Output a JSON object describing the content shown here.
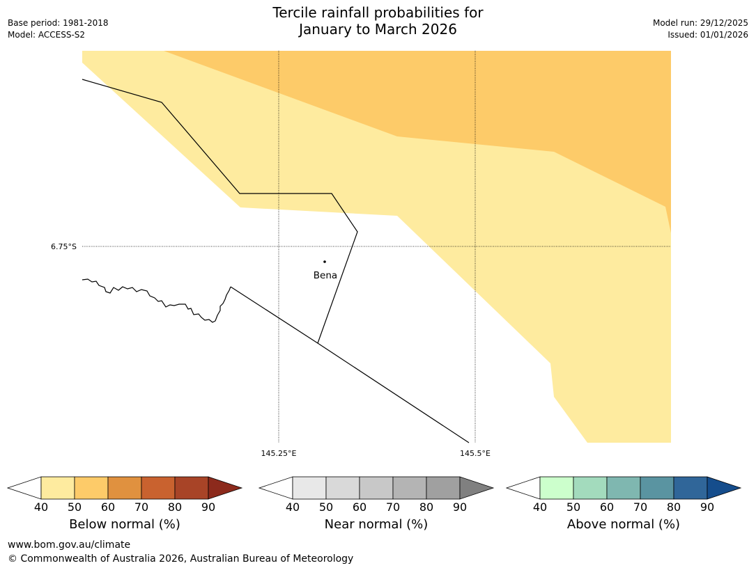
{
  "title": {
    "line1": "Tercile rainfall probabilities for",
    "line2": "January to March 2026"
  },
  "meta_left": {
    "base_period": "Base period: 1981-2018",
    "model": "Model: ACCESS-S2"
  },
  "meta_right": {
    "model_run": "Model run: 29/12/2025",
    "issued": "Issued: 01/01/2026"
  },
  "map": {
    "lat_label": "6.75°S",
    "lon_labels": [
      "145.25°E",
      "145.5°E"
    ],
    "town": "Bena",
    "colors": {
      "below_40_50": "#feeb9f",
      "below_50_60": "#fdcb69",
      "border": "#000000",
      "grid": "#000000"
    }
  },
  "colorbars": [
    {
      "label": "Below normal (%)",
      "ticks": [
        "40",
        "50",
        "60",
        "70",
        "80",
        "90"
      ],
      "colors": [
        "#feeb9f",
        "#fdcb69",
        "#e0913f",
        "#c9622f",
        "#a84427",
        "#8c2a1c"
      ]
    },
    {
      "label": "Near normal (%)",
      "ticks": [
        "40",
        "50",
        "60",
        "70",
        "80",
        "90"
      ],
      "colors": [
        "#e8e8e8",
        "#d9d9d9",
        "#c8c8c8",
        "#b4b4b4",
        "#a0a0a0",
        "#808080"
      ]
    },
    {
      "label": "Above normal (%)",
      "ticks": [
        "40",
        "50",
        "60",
        "70",
        "80",
        "90"
      ],
      "colors": [
        "#ccffcc",
        "#a3dbbd",
        "#7fb7b0",
        "#5a94a1",
        "#306699",
        "#154d8c"
      ]
    }
  ],
  "footer": {
    "url": "www.bom.gov.au/climate",
    "copyright": "© Commonwealth of Australia 2026, Australian Bureau of Meteorology"
  }
}
